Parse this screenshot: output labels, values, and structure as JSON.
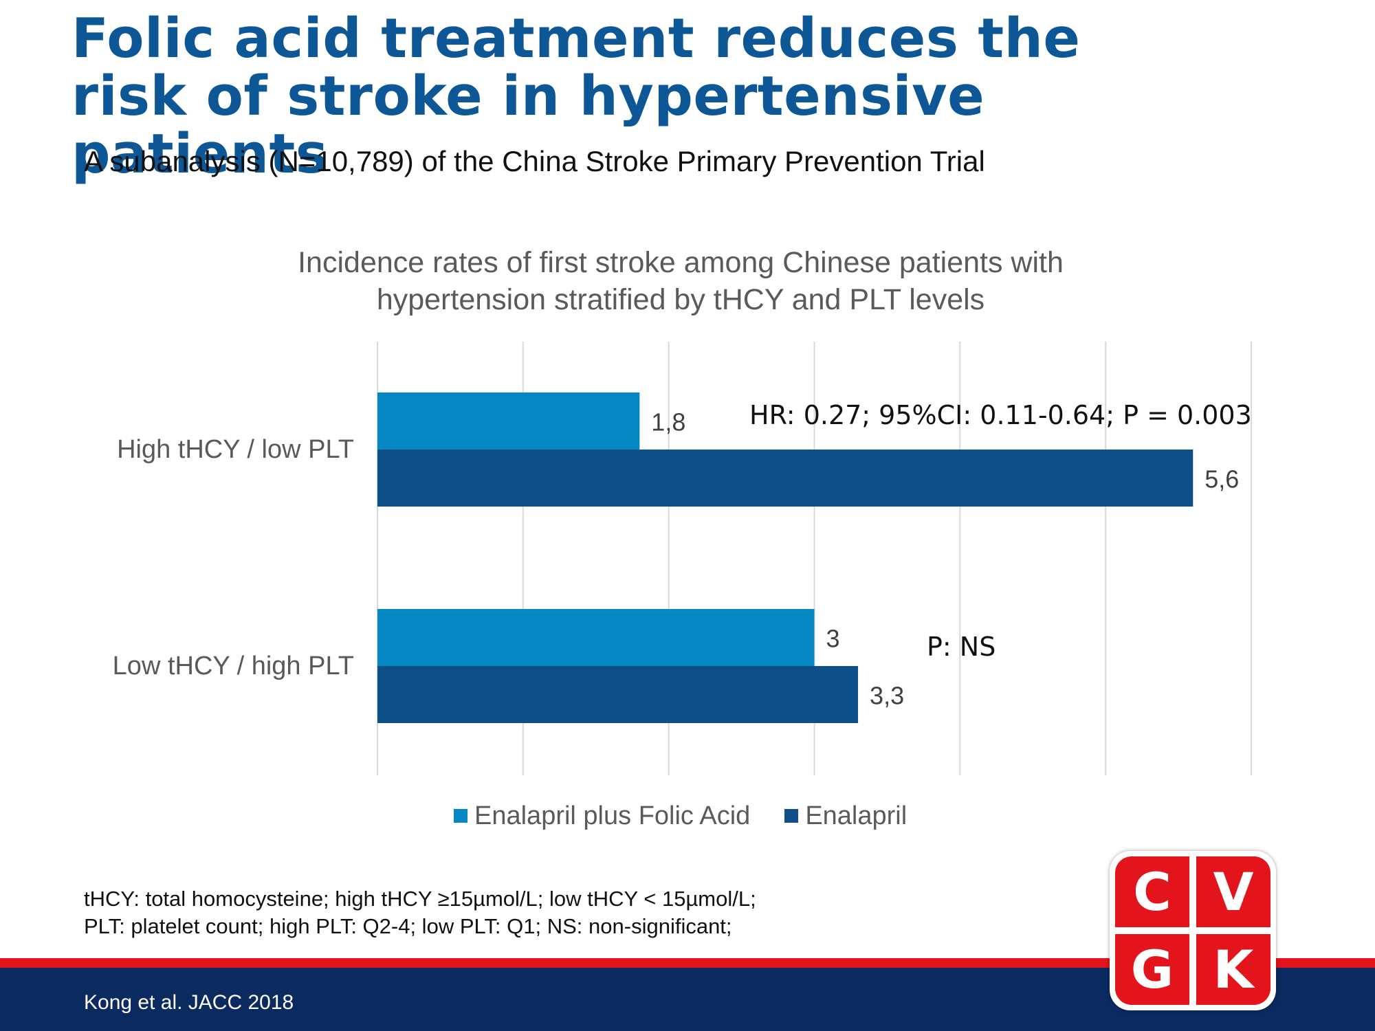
{
  "slide": {
    "title": "Folic acid treatment reduces the risk of stroke in hypertensive patients",
    "subtitle": "A subanalysis (N=10,789) of the China Stroke Primary Prevention Trial",
    "footnote_line1": "tHCY: total homocysteine; high tHCY ≥15µmol/L; low tHCY < 15µmol/L;",
    "footnote_line2": "PLT: platelet count; high PLT: Q2-4; low PLT: Q1; NS: non-significant;",
    "citation": "Kong et al. JACC 2018",
    "logo_letters": [
      "C",
      "V",
      "G",
      "K"
    ]
  },
  "colors": {
    "title": "#0d5796",
    "series_light": "#0587c3",
    "series_dark": "#0d4f86",
    "red": "#e3141b",
    "footer": "#0b2a5f"
  },
  "chart_data": {
    "type": "bar",
    "orientation": "horizontal",
    "title": "Incidence rates of first stroke among Chinese patients with\nhypertension stratified by tHCY and PLT levels",
    "categories": [
      "High tHCY / low PLT",
      "Low tHCY / high PLT"
    ],
    "series": [
      {
        "name": "Enalapril plus Folic Acid",
        "values": [
          1.8,
          3
        ],
        "labels": [
          "1,8",
          "3"
        ],
        "color": "#0587c3"
      },
      {
        "name": "Enalapril",
        "values": [
          5.6,
          3.3
        ],
        "labels": [
          "5,6",
          "3,3"
        ],
        "color": "#0d4f86"
      }
    ],
    "xlim": [
      0,
      6
    ],
    "grid": true,
    "legend": "bottom",
    "annotations": [
      "HR: 0.27; 95%CI: 0.11-0.64; P = 0.003",
      "P: NS"
    ]
  }
}
